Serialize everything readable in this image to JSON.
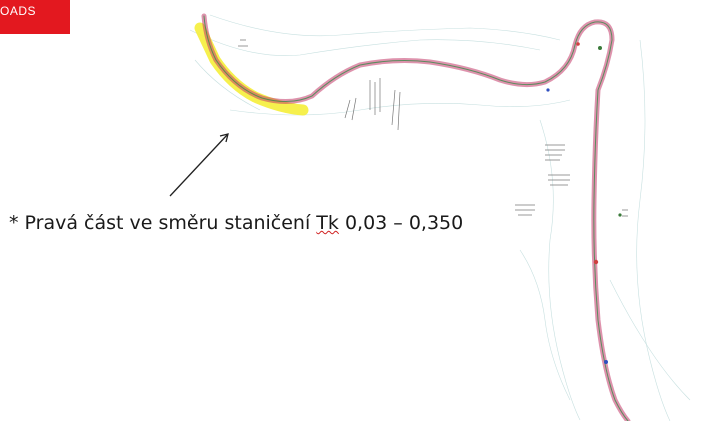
{
  "logo": {
    "text": "OADS",
    "color": "#e3181f"
  },
  "annotation": {
    "prefix": "* Pravá část ve směru staničení ",
    "tk": "Tk",
    "suffix": " 0,03 – 0,350"
  },
  "highlight_color": "#f5ee3a",
  "road_color": "#c23a6a"
}
